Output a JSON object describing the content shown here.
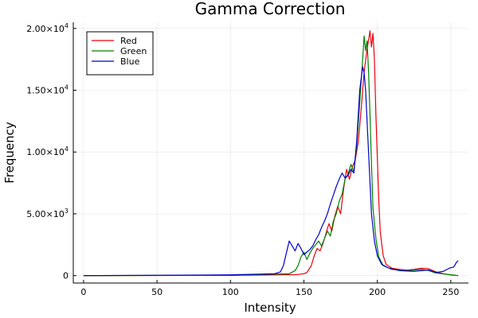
{
  "chart_data": {
    "type": "line",
    "title": "Gamma Correction",
    "xlabel": "Intensity",
    "ylabel": "Frequency",
    "xlim": [
      -7,
      262
    ],
    "ylim": [
      -600,
      20500
    ],
    "x_ticks": [
      0,
      50,
      100,
      150,
      200,
      250
    ],
    "x_tick_labels": [
      "0",
      "50",
      "100",
      "150",
      "200",
      "250"
    ],
    "y_ticks": [
      0,
      5000,
      10000,
      15000,
      20000
    ],
    "y_tick_labels": [
      {
        "mantissa": "0",
        "exp": ""
      },
      {
        "mantissa": "5.00×10",
        "exp": "3"
      },
      {
        "mantissa": "1.00×10",
        "exp": "4"
      },
      {
        "mantissa": "1.50×10",
        "exp": "4"
      },
      {
        "mantissa": "2.00×10",
        "exp": "4"
      }
    ],
    "grid": true,
    "legend_position": "top-left",
    "series": [
      {
        "name": "Red",
        "color": "#e8000b",
        "points": [
          [
            0,
            0
          ],
          [
            100,
            20
          ],
          [
            145,
            80
          ],
          [
            150,
            150
          ],
          [
            152,
            250
          ],
          [
            155,
            800
          ],
          [
            157,
            1600
          ],
          [
            159,
            2200
          ],
          [
            161,
            2000
          ],
          [
            163,
            2600
          ],
          [
            165,
            3400
          ],
          [
            167,
            4200
          ],
          [
            169,
            3600
          ],
          [
            171,
            4800
          ],
          [
            173,
            5600
          ],
          [
            175,
            5000
          ],
          [
            177,
            7000
          ],
          [
            179,
            8600
          ],
          [
            181,
            7800
          ],
          [
            183,
            8800
          ],
          [
            185,
            9400
          ],
          [
            187,
            10800
          ],
          [
            189,
            13500
          ],
          [
            191,
            16500
          ],
          [
            193,
            18300
          ],
          [
            195,
            19800
          ],
          [
            196,
            18500
          ],
          [
            197,
            19600
          ],
          [
            198,
            17500
          ],
          [
            199,
            13000
          ],
          [
            200,
            9500
          ],
          [
            201,
            6000
          ],
          [
            202,
            3500
          ],
          [
            204,
            1600
          ],
          [
            206,
            900
          ],
          [
            210,
            600
          ],
          [
            215,
            500
          ],
          [
            220,
            450
          ],
          [
            225,
            500
          ],
          [
            230,
            600
          ],
          [
            235,
            550
          ],
          [
            240,
            300
          ],
          [
            245,
            150
          ],
          [
            250,
            50
          ],
          [
            255,
            0
          ]
        ]
      },
      {
        "name": "Green",
        "color": "#008000",
        "points": [
          [
            0,
            0
          ],
          [
            100,
            30
          ],
          [
            140,
            150
          ],
          [
            144,
            400
          ],
          [
            146,
            800
          ],
          [
            148,
            1500
          ],
          [
            150,
            1900
          ],
          [
            152,
            1300
          ],
          [
            154,
            1800
          ],
          [
            156,
            2200
          ],
          [
            158,
            2500
          ],
          [
            160,
            2800
          ],
          [
            162,
            2400
          ],
          [
            164,
            3000
          ],
          [
            166,
            3600
          ],
          [
            168,
            3200
          ],
          [
            170,
            4400
          ],
          [
            172,
            5000
          ],
          [
            174,
            6000
          ],
          [
            176,
            6600
          ],
          [
            178,
            7800
          ],
          [
            180,
            8200
          ],
          [
            182,
            9000
          ],
          [
            184,
            8400
          ],
          [
            186,
            10600
          ],
          [
            188,
            14000
          ],
          [
            190,
            17500
          ],
          [
            191,
            19400
          ],
          [
            192,
            18200
          ],
          [
            193,
            19000
          ],
          [
            194,
            16500
          ],
          [
            195,
            13000
          ],
          [
            196,
            9000
          ],
          [
            197,
            5500
          ],
          [
            199,
            3000
          ],
          [
            201,
            1500
          ],
          [
            204,
            800
          ],
          [
            210,
            500
          ],
          [
            220,
            400
          ],
          [
            230,
            500
          ],
          [
            235,
            400
          ],
          [
            240,
            200
          ],
          [
            248,
            100
          ],
          [
            255,
            0
          ]
        ]
      },
      {
        "name": "Blue",
        "color": "#0000cd",
        "points": [
          [
            0,
            0
          ],
          [
            100,
            60
          ],
          [
            130,
            150
          ],
          [
            134,
            300
          ],
          [
            136,
            800
          ],
          [
            138,
            1800
          ],
          [
            140,
            2800
          ],
          [
            142,
            2400
          ],
          [
            144,
            2000
          ],
          [
            146,
            2600
          ],
          [
            148,
            2200
          ],
          [
            150,
            1700
          ],
          [
            152,
            1900
          ],
          [
            154,
            2100
          ],
          [
            156,
            2400
          ],
          [
            158,
            2900
          ],
          [
            160,
            3300
          ],
          [
            162,
            3900
          ],
          [
            164,
            4400
          ],
          [
            166,
            5000
          ],
          [
            168,
            5800
          ],
          [
            170,
            6500
          ],
          [
            172,
            7200
          ],
          [
            174,
            7800
          ],
          [
            176,
            8300
          ],
          [
            178,
            7900
          ],
          [
            180,
            8100
          ],
          [
            182,
            8600
          ],
          [
            184,
            8300
          ],
          [
            186,
            11000
          ],
          [
            188,
            15000
          ],
          [
            190,
            16900
          ],
          [
            191,
            16400
          ],
          [
            192,
            15000
          ],
          [
            193,
            12500
          ],
          [
            194,
            10000
          ],
          [
            195,
            7500
          ],
          [
            196,
            5000
          ],
          [
            198,
            2800
          ],
          [
            200,
            1600
          ],
          [
            203,
            900
          ],
          [
            208,
            600
          ],
          [
            215,
            400
          ],
          [
            225,
            350
          ],
          [
            235,
            450
          ],
          [
            240,
            250
          ],
          [
            245,
            350
          ],
          [
            249,
            600
          ],
          [
            252,
            700
          ],
          [
            254,
            1100
          ],
          [
            255,
            1200
          ]
        ]
      }
    ]
  }
}
